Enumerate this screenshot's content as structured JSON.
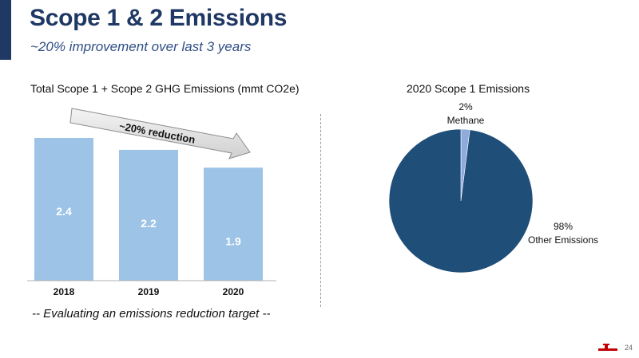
{
  "header": {
    "title": "Scope 1 & 2 Emissions",
    "subtitle": "~20% improvement over last 3 years"
  },
  "footnote": "-- Evaluating an emissions reduction target --",
  "page_number": "24",
  "colors": {
    "brand": "#1f3864",
    "bar": "#9dc3e6",
    "pie_main": "#1f4e79",
    "pie_minor": "#8faadc",
    "accent_logo": "#c00000"
  },
  "logo_icon": "company-logo-icon",
  "chart_data": [
    {
      "type": "bar",
      "title": "Total Scope 1 + Scope 2 GHG Emissions (mmt CO2e)",
      "categories": [
        "2018",
        "2019",
        "2020"
      ],
      "values": [
        2.4,
        2.2,
        1.9
      ],
      "value_labels": [
        "2.4",
        "2.2",
        "1.9"
      ],
      "ylim": [
        0,
        2.4
      ],
      "grid": false,
      "annotation": "~20% reduction"
    },
    {
      "type": "pie",
      "title": "2020 Scope 1 Emissions",
      "slices": [
        {
          "label": "Methane",
          "percent_label": "2%",
          "value": 2
        },
        {
          "label": "Other Emissions",
          "percent_label": "98%",
          "value": 98
        }
      ]
    }
  ]
}
